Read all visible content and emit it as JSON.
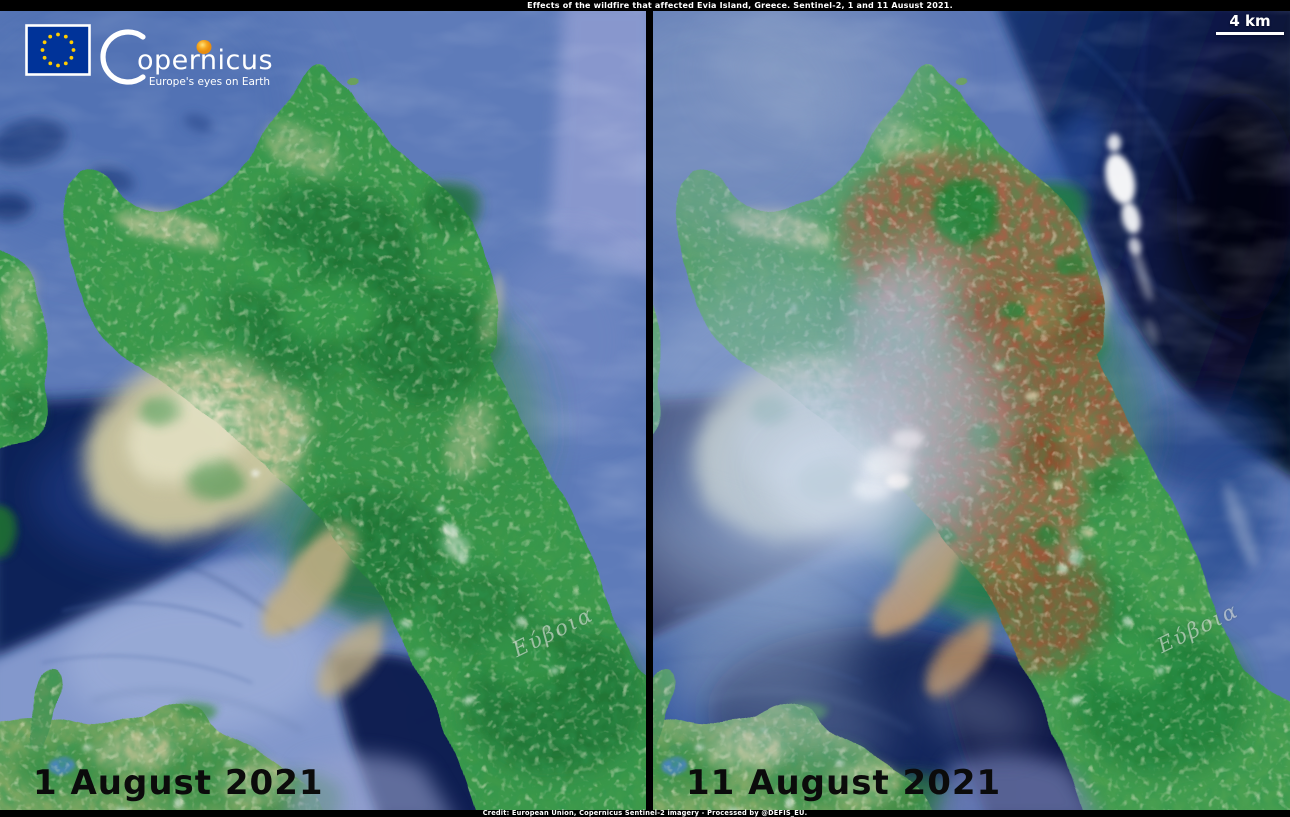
{
  "header": {
    "title": "Effects of the wildfire that affected  Evia Island, Greece. Sentinel-2, 1 and 11 Ausust 2021."
  },
  "footer": {
    "credit": "Credit: European Union, Copernicus  Sentinel-2 imagery - Processed by @DEFIS_EU."
  },
  "logo": {
    "brand": "Copernicus",
    "brand_rest": "opernicus",
    "tagline": "Europe's eyes on Earth"
  },
  "scale_bar": {
    "label": "4 km"
  },
  "panels": [
    {
      "id": "before",
      "date_label": "1 August 2021",
      "watermark": "Εύβοια"
    },
    {
      "id": "after",
      "date_label": "11 August 2021",
      "watermark": "Εύβοια"
    }
  ],
  "colors": {
    "bar_background": "#000000",
    "sea": "#5e7bb9",
    "sea_glint": "#8d9bd0",
    "gulf_dark_navy": "#0e2158",
    "deep_sea_dark": "#071026",
    "land_green": "#3e9a4b",
    "forest_green": "#1c7031",
    "agricultural_tan": "#cfc9a0",
    "burn_scar": "#a25a40",
    "smoke": "#cdd9ec",
    "cloud": "#ffffff",
    "eu_flag_blue": "#003399",
    "eu_star_yellow": "#ffcc00",
    "copernicus_sun_orange": "#f0a020",
    "date_label_color": "#0b0b0b"
  }
}
